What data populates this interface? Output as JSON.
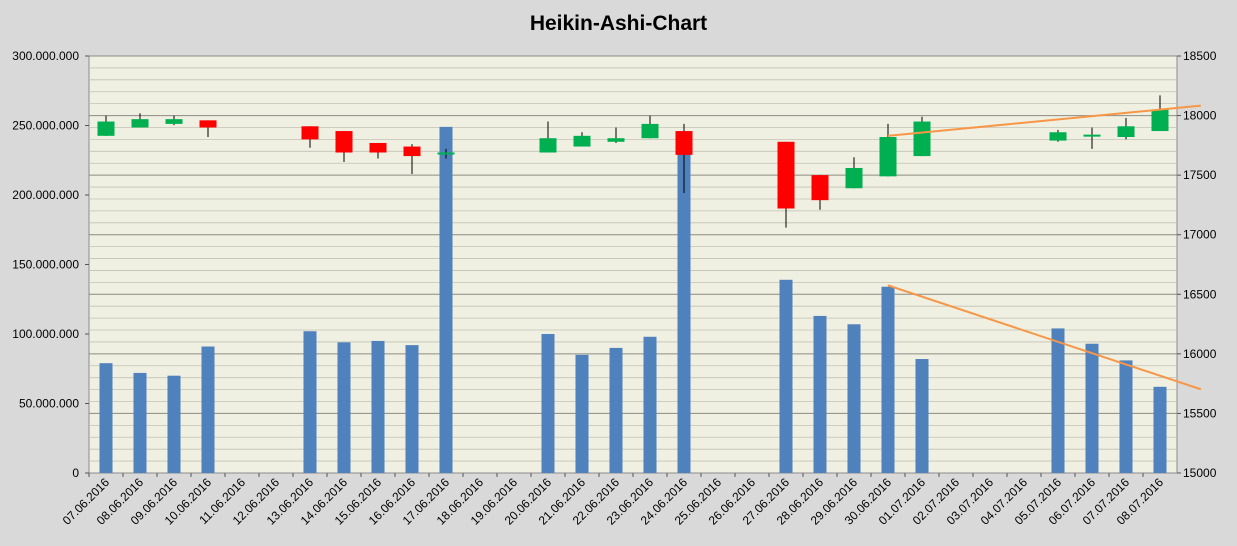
{
  "chart_data": {
    "type": "candlestick+bar",
    "title": "Heikin-Ashi-Chart",
    "categories": [
      "07.06.2016",
      "08.06.2016",
      "09.06.2016",
      "10.06.2016",
      "11.06.2016",
      "12.06.2016",
      "13.06.2016",
      "14.06.2016",
      "15.06.2016",
      "16.06.2016",
      "17.06.2016",
      "18.06.2016",
      "19.06.2016",
      "20.06.2016",
      "21.06.2016",
      "22.06.2016",
      "23.06.2016",
      "24.06.2016",
      "25.06.2016",
      "26.06.2016",
      "27.06.2016",
      "28.06.2016",
      "29.06.2016",
      "30.06.2016",
      "01.07.2016",
      "02.07.2016",
      "03.07.2016",
      "04.07.2016",
      "05.07.2016",
      "06.07.2016",
      "07.07.2016",
      "08.07.2016"
    ],
    "volume": [
      79000000,
      72000000,
      70000000,
      91000000,
      null,
      null,
      102000000,
      94000000,
      95000000,
      92000000,
      249000000,
      null,
      null,
      100000000,
      85000000,
      90000000,
      98000000,
      230000000,
      null,
      null,
      139000000,
      113000000,
      107000000,
      134000000,
      82000000,
      null,
      null,
      null,
      104000000,
      93000000,
      81000000,
      62000000
    ],
    "candles": [
      {
        "open": 17830,
        "close": 17950,
        "high": 18000,
        "low": 17830
      },
      {
        "open": 17900,
        "close": 17970,
        "high": 18020,
        "low": 17900
      },
      {
        "open": 17930,
        "close": 17970,
        "high": 18000,
        "low": 17920
      },
      {
        "open": 17960,
        "close": 17900,
        "high": 17960,
        "low": 17820
      },
      null,
      null,
      {
        "open": 17910,
        "close": 17800,
        "high": 17910,
        "low": 17730
      },
      {
        "open": 17870,
        "close": 17690,
        "high": 17870,
        "low": 17610
      },
      {
        "open": 17770,
        "close": 17690,
        "high": 17770,
        "low": 17640
      },
      {
        "open": 17740,
        "close": 17660,
        "high": 17760,
        "low": 17510
      },
      {
        "open": 17690,
        "close": 17690,
        "high": 17720,
        "low": 17640
      },
      null,
      null,
      {
        "open": 17690,
        "close": 17810,
        "high": 17950,
        "low": 17690
      },
      {
        "open": 17740,
        "close": 17830,
        "high": 17860,
        "low": 17740
      },
      {
        "open": 17780,
        "close": 17810,
        "high": 17900,
        "low": 17770
      },
      {
        "open": 17810,
        "close": 17930,
        "high": 18000,
        "low": 17810
      },
      {
        "open": 17870,
        "close": 17670,
        "high": 17930,
        "low": 17350
      },
      null,
      null,
      {
        "open": 17780,
        "close": 17220,
        "high": 17780,
        "low": 17060
      },
      {
        "open": 17500,
        "close": 17290,
        "high": 17500,
        "low": 17210
      },
      {
        "open": 17390,
        "close": 17560,
        "high": 17650,
        "low": 17390
      },
      {
        "open": 17490,
        "close": 17820,
        "high": 17930,
        "low": 17490
      },
      {
        "open": 17660,
        "close": 17950,
        "high": 17990,
        "low": 17660
      },
      null,
      null,
      null,
      {
        "open": 17790,
        "close": 17860,
        "high": 17880,
        "low": 17780
      },
      {
        "open": 17830,
        "close": 17840,
        "high": 17900,
        "low": 17720
      },
      {
        "open": 17820,
        "close": 17910,
        "high": 17980,
        "low": 17800
      },
      {
        "open": 17870,
        "close": 18050,
        "high": 18170,
        "low": 17870
      }
    ],
    "trendlines": [
      {
        "axis": "right",
        "from": {
          "x": "30.06.2016",
          "y": 17830
        },
        "to": {
          "x": "08.07.2016",
          "y": 18050
        }
      },
      {
        "axis": "left",
        "from": {
          "x": "30.06.2016",
          "y": 135000000
        },
        "to": {
          "x": "08.07.2016",
          "y": 70000000
        }
      }
    ],
    "y_left": {
      "min": 0,
      "max": 300000000,
      "step": 50000000,
      "tick_labels": [
        "0",
        "50.000.000",
        "100.000.000",
        "150.000.000",
        "200.000.000",
        "250.000.000",
        "300.000.000"
      ]
    },
    "y_right": {
      "min": 15000,
      "max": 18500,
      "step": 500,
      "tick_labels": [
        "15000",
        "15500",
        "16000",
        "16500",
        "17000",
        "17500",
        "18000",
        "18500"
      ]
    },
    "colors": {
      "volume": "#4f81bd",
      "up": "#00b050",
      "down": "#ff0000",
      "trend": "#f79646",
      "plot_bg": "#efefe2",
      "outer_bg": "#d9d9d9",
      "grid": "#c2c2b4"
    }
  }
}
